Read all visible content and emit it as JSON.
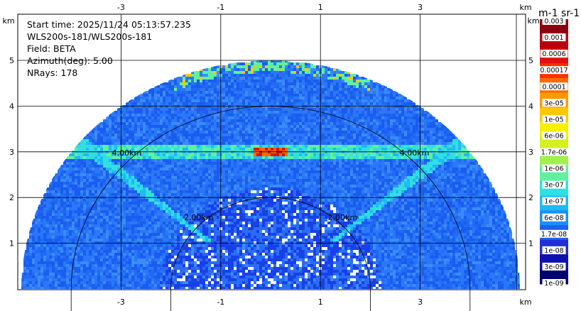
{
  "info": {
    "start_time": "Start time: 2025/11/24 05:13:57.235",
    "instrument": "WLS200s-181/WLS200s-181",
    "field": "Field: BETA",
    "azimuth": "Azimuth(deg): 5.00",
    "nrays": "NRays: 178"
  },
  "axes": {
    "x_unit": "km",
    "y_unit": "km",
    "x_ticks": [
      "-3",
      "-1",
      "1",
      "3"
    ],
    "y_ticks": [
      "1",
      "2",
      "3",
      "4",
      "5"
    ],
    "x_tick_values": [
      -3,
      -1,
      1,
      3
    ],
    "y_tick_values": [
      1,
      2,
      3,
      4,
      5
    ],
    "x_range": [
      -5.05,
      5.05
    ],
    "y_range": [
      0,
      5.95
    ]
  },
  "range_rings": [
    {
      "label": "2.00km",
      "radius_km": 2.0
    },
    {
      "label": "4.00km",
      "radius_km": 4.0
    }
  ],
  "scan": {
    "max_range_km": 5.0,
    "field": "BETA"
  },
  "colorbar": {
    "unit_title": "m-1 sr-1",
    "top_label": "0.003",
    "labels": [
      "0.001",
      "0.0006",
      "0.00017",
      "0.0001",
      "3e-05",
      "1e-05",
      "6e-06",
      "1.7e-06",
      "1e-06",
      "3e-07",
      "1e-07",
      "6e-08",
      "1.7e-08",
      "1e-08",
      "3e-09",
      "1e-09"
    ],
    "colors": [
      "#8b0010",
      "#b80010",
      "#e01010",
      "#ff3000",
      "#ff6a00",
      "#ff9a00",
      "#ffc800",
      "#f8f000",
      "#d4f020",
      "#a0f050",
      "#60f0a0",
      "#30e0e0",
      "#20b8f8",
      "#1890f8",
      "#2060f0",
      "#2030d8",
      "#1010b0",
      "#000070"
    ]
  }
}
